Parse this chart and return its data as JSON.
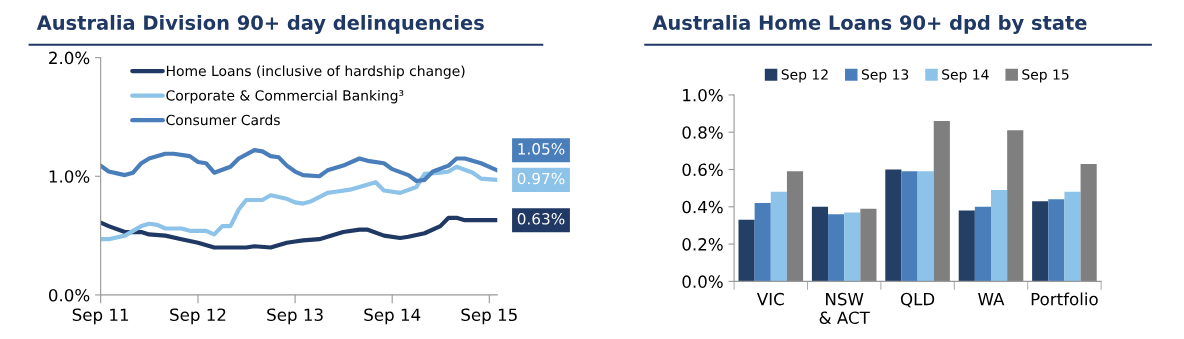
{
  "chart_data": [
    {
      "type": "line",
      "title": "Australia Division 90+ day delinquencies",
      "xlim": [
        "2011-09",
        "2015-10"
      ],
      "xticks": [
        {
          "value": "2011-09",
          "label": "Sep 11"
        },
        {
          "value": "2012-09",
          "label": "Sep 12"
        },
        {
          "value": "2013-09",
          "label": "Sep 13"
        },
        {
          "value": "2014-09",
          "label": "Sep 14"
        },
        {
          "value": "2015-09",
          "label": "Sep 15"
        }
      ],
      "ylim": [
        0,
        2
      ],
      "yticks": [
        {
          "value": 0,
          "label": "0.0%"
        },
        {
          "value": 1,
          "label": "1.0%"
        },
        {
          "value": 2,
          "label": "2.0%"
        }
      ],
      "grid": false,
      "legend": "top",
      "marker": "none",
      "line_style": "solid",
      "series": [
        {
          "name": "Home Loans (inclusive of hardship change)",
          "color": "#1f3864",
          "x": [
            "2011-09",
            "2011-10",
            "2011-12",
            "2012-02",
            "2012-03",
            "2012-05",
            "2012-07",
            "2012-09",
            "2012-11",
            "2013-01",
            "2013-03",
            "2013-04",
            "2013-06",
            "2013-08",
            "2013-09",
            "2013-10",
            "2013-12",
            "2014-01",
            "2014-03",
            "2014-05",
            "2014-06",
            "2014-08",
            "2014-10",
            "2014-11",
            "2015-01",
            "2015-03",
            "2015-04",
            "2015-05",
            "2015-06",
            "2015-10"
          ],
          "values": [
            0.61,
            0.58,
            0.53,
            0.53,
            0.51,
            0.5,
            0.47,
            0.44,
            0.4,
            0.4,
            0.4,
            0.41,
            0.4,
            0.44,
            0.45,
            0.46,
            0.47,
            0.49,
            0.53,
            0.55,
            0.55,
            0.5,
            0.48,
            0.49,
            0.52,
            0.58,
            0.65,
            0.65,
            0.63,
            0.63
          ]
        },
        {
          "name": "Corporate & Commercial Banking³",
          "color": "#8dc3e8",
          "x": [
            "2011-09",
            "2011-10",
            "2011-12",
            "2012-02",
            "2012-03",
            "2012-04",
            "2012-05",
            "2012-07",
            "2012-08",
            "2012-10",
            "2012-11",
            "2012-12",
            "2013-01",
            "2013-02",
            "2013-03",
            "2013-05",
            "2013-06",
            "2013-08",
            "2013-09",
            "2013-10",
            "2013-11",
            "2014-01",
            "2014-02",
            "2014-04",
            "2014-05",
            "2014-07",
            "2014-08",
            "2014-10",
            "2014-12",
            "2015-01",
            "2015-03",
            "2015-04",
            "2015-05",
            "2015-07",
            "2015-08",
            "2015-10"
          ],
          "values": [
            0.47,
            0.47,
            0.5,
            0.58,
            0.6,
            0.59,
            0.56,
            0.56,
            0.54,
            0.54,
            0.51,
            0.58,
            0.58,
            0.72,
            0.8,
            0.8,
            0.84,
            0.81,
            0.78,
            0.77,
            0.79,
            0.86,
            0.87,
            0.89,
            0.91,
            0.95,
            0.88,
            0.86,
            0.91,
            1.02,
            1.03,
            1.04,
            1.08,
            1.03,
            0.98,
            0.97
          ]
        },
        {
          "name": "Consumer Cards",
          "color": "#4a7ebb",
          "x": [
            "2011-09",
            "2011-10",
            "2011-12",
            "2012-01",
            "2012-02",
            "2012-03",
            "2012-05",
            "2012-06",
            "2012-08",
            "2012-09",
            "2012-10",
            "2012-11",
            "2013-01",
            "2013-02",
            "2013-04",
            "2013-05",
            "2013-06",
            "2013-07",
            "2013-08",
            "2013-09",
            "2013-10",
            "2013-12",
            "2014-01",
            "2014-03",
            "2014-05",
            "2014-06",
            "2014-08",
            "2014-09",
            "2014-11",
            "2014-12",
            "2015-01",
            "2015-02",
            "2015-04",
            "2015-05",
            "2015-06",
            "2015-08",
            "2015-09",
            "2015-10"
          ],
          "values": [
            1.09,
            1.04,
            1.01,
            1.03,
            1.11,
            1.15,
            1.19,
            1.19,
            1.17,
            1.12,
            1.11,
            1.03,
            1.08,
            1.15,
            1.22,
            1.21,
            1.17,
            1.16,
            1.09,
            1.04,
            1.01,
            1.0,
            1.05,
            1.09,
            1.15,
            1.13,
            1.11,
            1.06,
            1.01,
            0.96,
            0.97,
            1.04,
            1.09,
            1.15,
            1.15,
            1.11,
            1.08,
            1.05
          ]
        }
      ],
      "annotations": [
        {
          "text": "0.63%",
          "x": "2015-10",
          "y": 0.63
        },
        {
          "text": "0.97%",
          "x": "2015-10",
          "y": 0.97
        },
        {
          "text": "1.05%",
          "x": "2015-10",
          "y": 1.05
        }
      ]
    },
    {
      "type": "bar",
      "title": "Australia Home Loans 90+ dpd by state",
      "categories": [
        "VIC",
        "NSW\n& ACT",
        "QLD",
        "WA",
        "Portfolio"
      ],
      "ylim": [
        0,
        1.0
      ],
      "yticks": [
        {
          "value": 0,
          "label": "0.0%"
        },
        {
          "value": 0.2,
          "label": "0.2%"
        },
        {
          "value": 0.4,
          "label": "0.4%"
        },
        {
          "value": 0.6,
          "label": "0.6%"
        },
        {
          "value": 0.8,
          "label": "0.8%"
        },
        {
          "value": 1.0,
          "label": "1.0%"
        }
      ],
      "grid": false,
      "legend": "top",
      "series": [
        {
          "name": "Sep 12",
          "color": "#243f66",
          "values": [
            0.33,
            0.4,
            0.6,
            0.38,
            0.43
          ]
        },
        {
          "name": "Sep 13",
          "color": "#4a7ebb",
          "values": [
            0.42,
            0.36,
            0.59,
            0.4,
            0.44
          ]
        },
        {
          "name": "Sep 14",
          "color": "#8dc3e8",
          "values": [
            0.48,
            0.37,
            0.59,
            0.49,
            0.48
          ]
        },
        {
          "name": "Sep 15",
          "color": "#7f7f7f",
          "values": [
            0.59,
            0.39,
            0.86,
            0.81,
            0.63
          ]
        }
      ]
    }
  ]
}
